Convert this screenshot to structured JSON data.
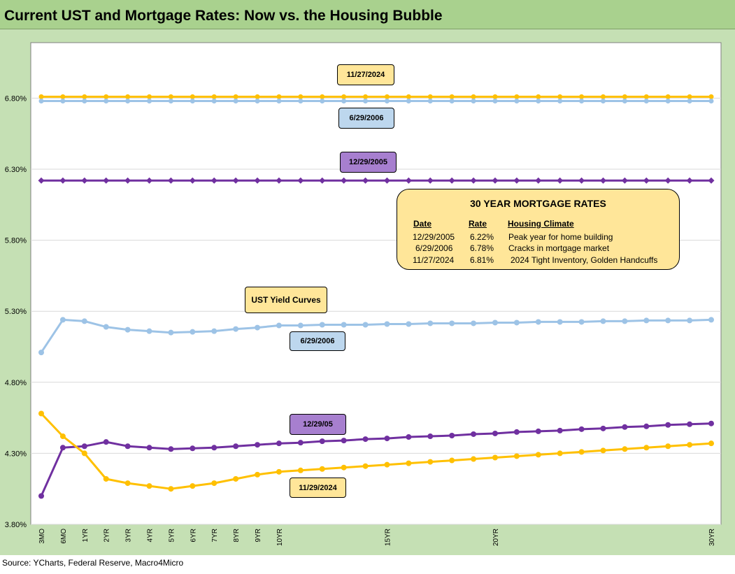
{
  "title": "Current UST and Mortgage Rates: Now vs. the Housing Bubble",
  "source": "Source: YCharts, Federal Reserve, Macro4Micro",
  "series_labels": {
    "mortgage_2024": "11/27/2024",
    "mortgage_2006": "6/29/2006",
    "mortgage_2005": "12/29/2005",
    "ust_title": "UST  Yield Curves",
    "ust_2006": "6/29/2006",
    "ust_2005": "12/29/05",
    "ust_2024": "11/29/2024"
  },
  "info_box": {
    "title": "30 YEAR MORTGAGE RATES",
    "headers": [
      "Date",
      "Rate",
      "Housing Climate"
    ],
    "rows": [
      [
        "12/29/2005",
        "6.22%",
        "Peak year for home building"
      ],
      [
        "6/29/2006",
        "6.78%",
        "Cracks in mortgage market"
      ],
      [
        "11/27/2024",
        "6.81%",
        "2024 Tight Inventory, Golden Handcuffs"
      ]
    ]
  },
  "colors": {
    "yellow": "#ffc000",
    "light_blue": "#9dc3e6",
    "purple": "#7030a0",
    "frame": "#c5e0b4",
    "title_bar": "#a9d18e"
  },
  "chart_data": {
    "type": "line",
    "x": [
      "3MO",
      "6MO",
      "1YR",
      "2YR",
      "3YR",
      "4YR",
      "5YR",
      "6YR",
      "7YR",
      "8YR",
      "9YR",
      "10YR",
      "11YR",
      "12YR",
      "13YR",
      "14YR",
      "15YR",
      "16YR",
      "17YR",
      "18YR",
      "19YR",
      "20YR",
      "21YR",
      "22YR",
      "23YR",
      "24YR",
      "25YR",
      "26YR",
      "27YR",
      "28YR",
      "29YR",
      "30YR"
    ],
    "x_tick_labels_shown": [
      "3MO",
      "6MO",
      "1YR",
      "2YR",
      "3YR",
      "4YR",
      "5YR",
      "6YR",
      "7YR",
      "8YR",
      "9YR",
      "10YR",
      "15YR",
      "20YR",
      "30YR"
    ],
    "y_ticks": [
      "3.80%",
      "4.30%",
      "4.80%",
      "5.30%",
      "5.80%",
      "6.30%",
      "6.80%"
    ],
    "ylim": [
      3.8,
      7.15
    ],
    "grid": true,
    "series": [
      {
        "name": "11/27/2024",
        "color": "#ffc000",
        "kind": "mortgage",
        "values": [
          6.81,
          6.81,
          6.81,
          6.81,
          6.81,
          6.81,
          6.81,
          6.81,
          6.81,
          6.81,
          6.81,
          6.81,
          6.81,
          6.81,
          6.81,
          6.81,
          6.81,
          6.81,
          6.81,
          6.81,
          6.81,
          6.81,
          6.81,
          6.81,
          6.81,
          6.81,
          6.81,
          6.81,
          6.81,
          6.81,
          6.81,
          6.81
        ]
      },
      {
        "name": "6/29/2006",
        "color": "#9dc3e6",
        "kind": "mortgage",
        "values": [
          6.78,
          6.78,
          6.78,
          6.78,
          6.78,
          6.78,
          6.78,
          6.78,
          6.78,
          6.78,
          6.78,
          6.78,
          6.78,
          6.78,
          6.78,
          6.78,
          6.78,
          6.78,
          6.78,
          6.78,
          6.78,
          6.78,
          6.78,
          6.78,
          6.78,
          6.78,
          6.78,
          6.78,
          6.78,
          6.78,
          6.78,
          6.78
        ]
      },
      {
        "name": "12/29/2005",
        "color": "#7030a0",
        "kind": "mortgage",
        "values": [
          6.22,
          6.22,
          6.22,
          6.22,
          6.22,
          6.22,
          6.22,
          6.22,
          6.22,
          6.22,
          6.22,
          6.22,
          6.22,
          6.22,
          6.22,
          6.22,
          6.22,
          6.22,
          6.22,
          6.22,
          6.22,
          6.22,
          6.22,
          6.22,
          6.22,
          6.22,
          6.22,
          6.22,
          6.22,
          6.22,
          6.22,
          6.22
        ]
      },
      {
        "name": "6/29/2006",
        "color": "#9dc3e6",
        "kind": "ust",
        "values": [
          5.01,
          5.24,
          5.23,
          5.19,
          5.17,
          5.16,
          5.15,
          5.155,
          5.16,
          5.175,
          5.185,
          5.2,
          5.2,
          5.205,
          5.205,
          5.205,
          5.21,
          5.21,
          5.215,
          5.215,
          5.215,
          5.22,
          5.22,
          5.225,
          5.225,
          5.225,
          5.23,
          5.23,
          5.235,
          5.235,
          5.235,
          5.24
        ]
      },
      {
        "name": "12/29/05",
        "color": "#7030a0",
        "kind": "ust",
        "values": [
          4.0,
          4.34,
          4.35,
          4.38,
          4.35,
          4.34,
          4.33,
          4.335,
          4.34,
          4.35,
          4.36,
          4.37,
          4.375,
          4.385,
          4.39,
          4.4,
          4.405,
          4.415,
          4.42,
          4.425,
          4.435,
          4.44,
          4.45,
          4.455,
          4.46,
          4.47,
          4.475,
          4.485,
          4.49,
          4.5,
          4.505,
          4.51
        ]
      },
      {
        "name": "11/29/2024",
        "color": "#ffc000",
        "kind": "ust",
        "values": [
          4.58,
          4.42,
          4.3,
          4.12,
          4.09,
          4.07,
          4.05,
          4.07,
          4.09,
          4.12,
          4.15,
          4.17,
          4.18,
          4.19,
          4.2,
          4.21,
          4.22,
          4.23,
          4.24,
          4.25,
          4.26,
          4.27,
          4.28,
          4.29,
          4.3,
          4.31,
          4.32,
          4.33,
          4.34,
          4.35,
          4.36,
          4.37
        ]
      }
    ]
  }
}
